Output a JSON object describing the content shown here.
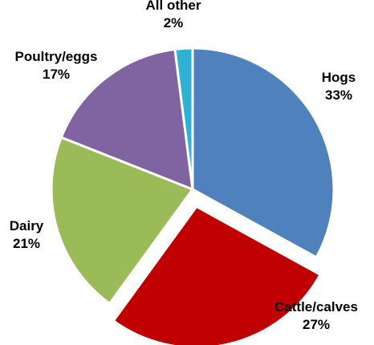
{
  "chart_data": {
    "type": "pie",
    "title": "",
    "categories": [
      "Hogs",
      "Cattle/calves",
      "Dairy",
      "Poultry/eggs",
      "All other"
    ],
    "values": [
      33,
      27,
      21,
      17,
      2
    ],
    "percent_labels": [
      "33%",
      "27%",
      "21%",
      "17%",
      "2%"
    ],
    "colors": [
      "#4f81bd",
      "#c00000",
      "#9bbb59",
      "#8064a2",
      "#31b0d5"
    ],
    "start_angle_deg": 0,
    "direction": "clockwise",
    "exploded": [
      "Cattle/calves"
    ],
    "legend": "none",
    "labels": "outside"
  }
}
